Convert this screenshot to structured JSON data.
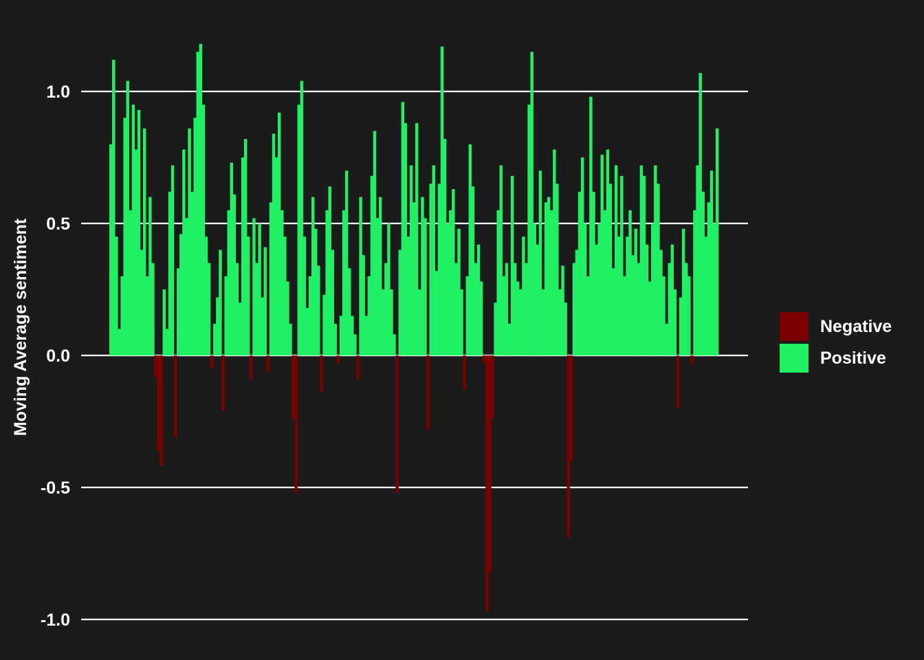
{
  "chart_data": {
    "type": "bar",
    "title": "",
    "xlabel": "",
    "ylabel": "Moving Average sentiment",
    "ylim": [
      -1.0,
      1.2
    ],
    "yticks": [
      "-1.0",
      "-0.5",
      "0.0",
      "0.5",
      "1.0"
    ],
    "grid": "horizontal",
    "legend_position": "right",
    "colors": {
      "Negative": "#7a0000",
      "Positive": "#1ff064",
      "background": "#1b1b1b",
      "grid": "#ffffff"
    },
    "legend": [
      "Negative",
      "Positive"
    ],
    "series": [
      {
        "name": "Moving Average sentiment",
        "values": [
          0.8,
          1.12,
          0.45,
          0.1,
          0.3,
          0.9,
          1.04,
          0.55,
          0.95,
          0.78,
          0.93,
          0.4,
          0.86,
          0.3,
          0.6,
          0.35,
          -0.08,
          -0.36,
          -0.42,
          0.25,
          0.1,
          0.62,
          0.72,
          -0.31,
          0.33,
          0.46,
          0.78,
          0.52,
          0.86,
          0.62,
          0.9,
          1.15,
          1.18,
          0.95,
          0.45,
          0.35,
          -0.05,
          0.12,
          0.22,
          0.4,
          -0.21,
          0.3,
          0.55,
          0.73,
          0.61,
          0.35,
          0.2,
          0.75,
          0.82,
          0.45,
          -0.09,
          0.52,
          0.35,
          0.5,
          0.22,
          0.41,
          -0.06,
          0.58,
          0.84,
          0.75,
          0.92,
          0.55,
          0.45,
          0.28,
          0.12,
          -0.24,
          -0.52,
          0.95,
          1.04,
          0.45,
          0.18,
          0.3,
          0.6,
          0.48,
          0.34,
          -0.14,
          0.23,
          0.55,
          0.64,
          0.4,
          0.12,
          -0.03,
          0.15,
          0.55,
          0.7,
          0.33,
          0.15,
          0.08,
          -0.09,
          0.6,
          0.38,
          0.15,
          0.3,
          0.68,
          0.85,
          0.52,
          0.6,
          0.25,
          0.35,
          0.5,
          0.25,
          0.08,
          -0.52,
          0.4,
          0.96,
          0.88,
          0.45,
          0.72,
          0.58,
          0.88,
          0.25,
          0.6,
          0.52,
          -0.28,
          0.65,
          0.72,
          0.32,
          0.65,
          1.17,
          0.82,
          0.5,
          0.55,
          0.63,
          0.35,
          0.48,
          0.25,
          -0.13,
          0.3,
          0.8,
          0.64,
          0.35,
          0.42,
          0.28,
          -0.03,
          -0.97,
          -0.82,
          -0.24,
          0.2,
          0.55,
          0.72,
          0.3,
          0.35,
          0.12,
          0.68,
          0.35,
          0.28,
          0.25,
          0.45,
          0.35,
          0.95,
          1.15,
          0.5,
          0.42,
          0.7,
          0.25,
          0.58,
          0.6,
          0.55,
          0.78,
          0.65,
          0.25,
          0.34,
          0.2,
          -0.69,
          -0.4,
          0.35,
          0.4,
          0.62,
          0.75,
          0.5,
          0.3,
          0.98,
          0.62,
          0.42,
          0.5,
          0.76,
          0.55,
          0.78,
          0.65,
          0.33,
          0.72,
          0.45,
          0.68,
          0.3,
          0.45,
          0.55,
          0.38,
          0.48,
          0.35,
          0.72,
          0.68,
          0.42,
          0.28,
          0.5,
          0.72,
          0.65,
          0.4,
          0.3,
          0.12,
          0.35,
          0.42,
          0.25,
          -0.2,
          0.22,
          0.48,
          0.35,
          0.3,
          -0.03,
          0.55,
          0.72,
          1.07,
          0.62,
          0.45,
          0.58,
          0.7,
          0.5,
          0.86
        ]
      }
    ]
  }
}
